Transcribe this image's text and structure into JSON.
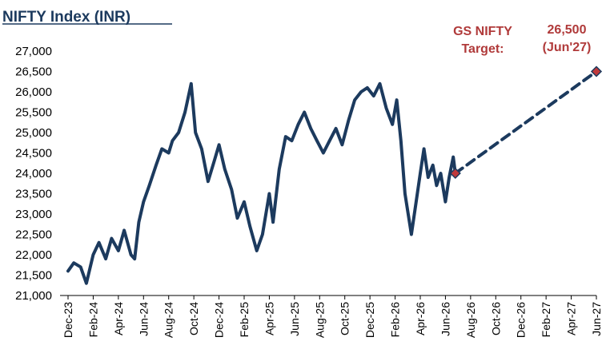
{
  "chart_data": {
    "type": "line",
    "title": "NIFTY Index (INR)",
    "xlabel": "",
    "ylabel": "",
    "ylim": [
      21000,
      27000
    ],
    "xlim": [
      "2023-12",
      "2027-06"
    ],
    "grid": false,
    "y_ticks": [
      "21,000",
      "21,500",
      "22,000",
      "22,500",
      "23,000",
      "23,500",
      "24,000",
      "24,500",
      "25,000",
      "25,500",
      "26,000",
      "26,500",
      "27,000"
    ],
    "x_ticks": [
      "Dec-23",
      "Feb-24",
      "Apr-24",
      "Jun-24",
      "Aug-24",
      "Oct-24",
      "Dec-24",
      "Feb-25",
      "Apr-25",
      "Jun-25",
      "Aug-25",
      "Oct-25",
      "Dec-25",
      "Feb-26",
      "Apr-26",
      "Jun-26",
      "Aug-26",
      "Oct-26",
      "Dec-26",
      "Feb-27",
      "Apr-27",
      "Jun-27"
    ],
    "series": [
      {
        "color": "#1c3a5e",
        "style": "solid",
        "points": [
          [
            "2023-12-01",
            21600
          ],
          [
            "2023-12-15",
            21800
          ],
          [
            "2024-01-01",
            21700
          ],
          [
            "2024-01-15",
            21300
          ],
          [
            "2024-02-01",
            22000
          ],
          [
            "2024-02-15",
            22300
          ],
          [
            "2024-03-01",
            21900
          ],
          [
            "2024-03-15",
            22400
          ],
          [
            "2024-04-01",
            22100
          ],
          [
            "2024-04-15",
            22600
          ],
          [
            "2024-05-01",
            22000
          ],
          [
            "2024-05-10",
            21900
          ],
          [
            "2024-05-20",
            22800
          ],
          [
            "2024-06-01",
            23300
          ],
          [
            "2024-06-15",
            23700
          ],
          [
            "2024-07-01",
            24200
          ],
          [
            "2024-07-15",
            24600
          ],
          [
            "2024-08-01",
            24500
          ],
          [
            "2024-08-10",
            24800
          ],
          [
            "2024-08-25",
            25000
          ],
          [
            "2024-09-10",
            25500
          ],
          [
            "2024-09-25",
            26200
          ],
          [
            "2024-10-05",
            25000
          ],
          [
            "2024-10-20",
            24600
          ],
          [
            "2024-11-05",
            23800
          ],
          [
            "2024-11-20",
            24300
          ],
          [
            "2024-12-01",
            24700
          ],
          [
            "2024-12-15",
            24100
          ],
          [
            "2025-01-01",
            23600
          ],
          [
            "2025-01-15",
            22900
          ],
          [
            "2025-02-01",
            23300
          ],
          [
            "2025-02-15",
            22700
          ],
          [
            "2025-03-01",
            22100
          ],
          [
            "2025-03-15",
            22500
          ],
          [
            "2025-04-01",
            23500
          ],
          [
            "2025-04-10",
            22800
          ],
          [
            "2025-04-25",
            24100
          ],
          [
            "2025-05-10",
            24900
          ],
          [
            "2025-05-25",
            24800
          ],
          [
            "2025-06-10",
            25200
          ],
          [
            "2025-06-25",
            25500
          ],
          [
            "2025-07-10",
            25100
          ],
          [
            "2025-07-25",
            24800
          ],
          [
            "2025-08-10",
            24500
          ],
          [
            "2025-08-25",
            24800
          ],
          [
            "2025-09-10",
            25100
          ],
          [
            "2025-09-25",
            24700
          ],
          [
            "2025-10-10",
            25300
          ],
          [
            "2025-10-25",
            25800
          ],
          [
            "2025-11-10",
            26000
          ],
          [
            "2025-11-25",
            26100
          ],
          [
            "2025-12-10",
            25900
          ],
          [
            "2025-12-25",
            26200
          ],
          [
            "2026-01-10",
            25600
          ],
          [
            "2026-01-25",
            25200
          ],
          [
            "2026-02-05",
            25800
          ],
          [
            "2026-02-15",
            24800
          ],
          [
            "2026-02-25",
            23500
          ],
          [
            "2026-03-10",
            22500
          ],
          [
            "2026-03-20",
            23200
          ],
          [
            "2026-04-01",
            24000
          ],
          [
            "2026-04-10",
            24600
          ],
          [
            "2026-04-20",
            23900
          ],
          [
            "2026-05-01",
            24200
          ],
          [
            "2026-05-10",
            23700
          ],
          [
            "2026-05-20",
            24000
          ],
          [
            "2026-06-01",
            23300
          ],
          [
            "2026-06-10",
            23900
          ],
          [
            "2026-06-20",
            24400
          ],
          [
            "2026-06-25",
            24000
          ]
        ]
      },
      {
        "color": "#1c3a5e",
        "style": "dashed",
        "points": [
          [
            "2026-06-25",
            24000
          ],
          [
            "2027-06-01",
            26500
          ]
        ]
      }
    ],
    "markers": [
      {
        "x": "2026-06-25",
        "y": 24000,
        "shape": "diamond",
        "color": "#c0393b"
      },
      {
        "x": "2027-06-01",
        "y": 26500,
        "shape": "diamond",
        "color": "#c0393b"
      }
    ],
    "annotations": [
      {
        "lines": [
          "GS NIFTY",
          "Target:"
        ],
        "color": "#b03a3a"
      },
      {
        "lines": [
          "26,500",
          "(Jun'27)"
        ],
        "color": "#b03a3a"
      }
    ]
  }
}
